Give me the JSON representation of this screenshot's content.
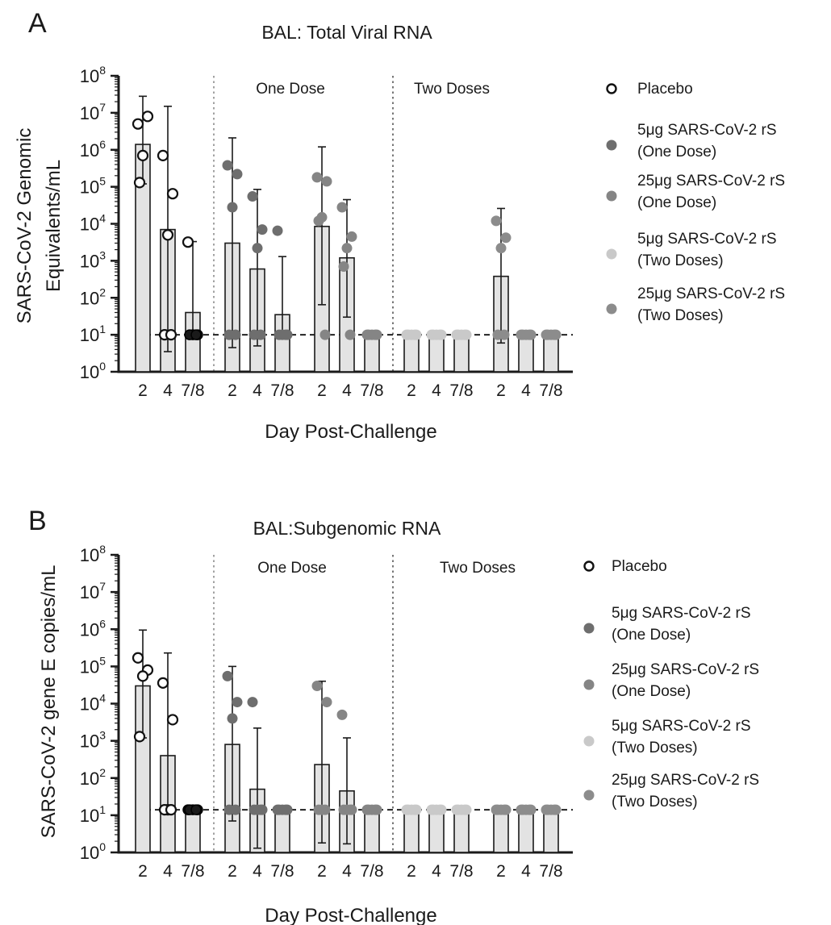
{
  "chart_data": [
    {
      "panel_letter": "A",
      "type": "bar",
      "title": "BAL: Total Viral RNA",
      "xlabel": "Day Post-Challenge",
      "ylabel_lines": [
        "SARS-CoV-2 Genomic",
        "Equivalents/mL"
      ],
      "y_scale": "log",
      "ylim": [
        1,
        100000000
      ],
      "y_ticks": [
        {
          "base": "10",
          "exp": "0"
        },
        {
          "base": "10",
          "exp": "1"
        },
        {
          "base": "10",
          "exp": "2"
        },
        {
          "base": "10",
          "exp": "3"
        },
        {
          "base": "10",
          "exp": "4"
        },
        {
          "base": "10",
          "exp": "5"
        },
        {
          "base": "10",
          "exp": "6"
        },
        {
          "base": "10",
          "exp": "7"
        },
        {
          "base": "10",
          "exp": "8"
        }
      ],
      "detection_limit": 10,
      "section_labels": [
        "One Dose",
        "Two Doses"
      ],
      "groups": [
        {
          "series": "Placebo",
          "days": [
            "2",
            "4",
            "7/8"
          ],
          "values": [
            1400000,
            7000,
            40
          ],
          "err_low": [
            120000,
            3.5,
            10
          ],
          "err_high": [
            28000000,
            15000000,
            3300
          ],
          "points": [
            [
              5000000,
              8000000,
              700000,
              130000
            ],
            [
              700000,
              65000,
              5000,
              10,
              10
            ],
            [
              3200,
              10,
              10,
              10,
              10
            ]
          ]
        },
        {
          "series": "5μg SARS-CoV-2 rS (One Dose)",
          "days": [
            "2",
            "4",
            "7/8"
          ],
          "values": [
            3000,
            600,
            35
          ],
          "err_low": [
            4.5,
            5,
            10
          ],
          "err_high": [
            2100000,
            85000,
            1300
          ],
          "points": [
            [
              380000,
              220000,
              28000,
              10,
              10
            ],
            [
              55000,
              7000,
              2200,
              10,
              10
            ],
            [
              6500,
              10,
              10,
              10,
              10
            ]
          ]
        },
        {
          "series": "25μg SARS-CoV-2 rS (One Dose)",
          "days": [
            "2",
            "4",
            "7/8"
          ],
          "values": [
            8500,
            1200,
            10
          ],
          "err_low": [
            65,
            30,
            10
          ],
          "err_high": [
            1200000,
            45000,
            10
          ],
          "points": [
            [
              180000,
              140000,
              15000,
              12000,
              10
            ],
            [
              28000,
              4500,
              2200,
              700,
              10
            ],
            [
              10,
              10,
              10,
              10,
              10
            ]
          ]
        },
        {
          "series": "5μg SARS-CoV-2 rS (Two Doses)",
          "days": [
            "2",
            "4",
            "7/8"
          ],
          "values": [
            10,
            10,
            10
          ],
          "err_low": [
            10,
            10,
            10
          ],
          "err_high": [
            10,
            10,
            10
          ],
          "points": [
            [
              10,
              10,
              10,
              10,
              10
            ],
            [
              10,
              10,
              10,
              10,
              10
            ],
            [
              10,
              10,
              10,
              10,
              10
            ]
          ]
        },
        {
          "series": "25μg SARS-CoV-2 rS (Two Doses)",
          "days": [
            "2",
            "4",
            "7/8"
          ],
          "values": [
            380,
            10,
            10
          ],
          "err_low": [
            6,
            10,
            10
          ],
          "err_high": [
            26000,
            10,
            10
          ],
          "points": [
            [
              12000,
              4200,
              2200,
              10,
              10
            ],
            [
              10,
              10,
              10,
              10,
              10
            ],
            [
              10,
              10,
              10,
              10,
              10
            ]
          ]
        }
      ],
      "legend": [
        {
          "label_lines": [
            "Placebo"
          ],
          "marker": "open",
          "color": "#1a1a1a"
        },
        {
          "label_lines": [
            "5μg SARS-CoV-2 rS",
            "(One Dose)"
          ],
          "marker": "filled",
          "color": "#6e6e6e"
        },
        {
          "label_lines": [
            "25μg SARS-CoV-2 rS",
            "(One Dose)"
          ],
          "marker": "filled",
          "color": "#858585"
        },
        {
          "label_lines": [
            "5μg SARS-CoV-2 rS",
            "(Two Doses)"
          ],
          "marker": "filled",
          "color": "#c9c9c9"
        },
        {
          "label_lines": [
            "25μg SARS-CoV-2 rS",
            "(Two Doses)"
          ],
          "marker": "filled",
          "color": "#8c8c8c"
        }
      ],
      "legend_placement": "right"
    },
    {
      "panel_letter": "B",
      "type": "bar",
      "title": "BAL:Subgenomic RNA",
      "xlabel": "Day Post-Challenge",
      "ylabel_lines": [
        "SARS-CoV-2 gene E copies/mL"
      ],
      "y_scale": "log",
      "ylim": [
        1,
        100000000
      ],
      "y_ticks": [
        {
          "base": "10",
          "exp": "0"
        },
        {
          "base": "10",
          "exp": "1"
        },
        {
          "base": "10",
          "exp": "2"
        },
        {
          "base": "10",
          "exp": "3"
        },
        {
          "base": "10",
          "exp": "4"
        },
        {
          "base": "10",
          "exp": "5"
        },
        {
          "base": "10",
          "exp": "6"
        },
        {
          "base": "10",
          "exp": "7"
        },
        {
          "base": "10",
          "exp": "8"
        }
      ],
      "detection_limit": 14,
      "section_labels": [
        "One Dose",
        "Two Doses"
      ],
      "groups": [
        {
          "series": "Placebo",
          "days": [
            "2",
            "4",
            "7/8"
          ],
          "values": [
            30000,
            400,
            14
          ],
          "err_low": [
            1200,
            14,
            14
          ],
          "err_high": [
            950000,
            230000,
            14
          ],
          "points": [
            [
              170000,
              80000,
              55000,
              1300
            ],
            [
              36000,
              3700,
              14,
              14,
              14
            ],
            [
              14,
              14,
              14,
              14,
              14
            ]
          ]
        },
        {
          "series": "5μg SARS-CoV-2 rS (One Dose)",
          "days": [
            "2",
            "4",
            "7/8"
          ],
          "values": [
            800,
            50,
            14
          ],
          "err_low": [
            7,
            1.3,
            14
          ],
          "err_high": [
            100000,
            2200,
            14
          ],
          "points": [
            [
              55000,
              11000,
              4000,
              14,
              14
            ],
            [
              11000,
              14,
              14,
              14,
              14
            ],
            [
              14,
              14,
              14,
              14,
              14
            ]
          ]
        },
        {
          "series": "25μg SARS-CoV-2 rS (One Dose)",
          "days": [
            "2",
            "4",
            "7/8"
          ],
          "values": [
            230,
            45,
            14
          ],
          "err_low": [
            1.8,
            1.7,
            14
          ],
          "err_high": [
            40000,
            1200,
            14
          ],
          "points": [
            [
              30000,
              11000,
              14,
              14,
              14
            ],
            [
              5000,
              14,
              14,
              14,
              14
            ],
            [
              14,
              14,
              14,
              14,
              14
            ]
          ]
        },
        {
          "series": "5μg SARS-CoV-2 rS (Two Doses)",
          "days": [
            "2",
            "4",
            "7/8"
          ],
          "values": [
            14,
            14,
            14
          ],
          "err_low": [
            14,
            14,
            14
          ],
          "err_high": [
            14,
            14,
            14
          ],
          "points": [
            [
              14,
              14,
              14,
              14,
              14
            ],
            [
              14,
              14,
              14,
              14,
              14
            ],
            [
              14,
              14,
              14,
              14,
              14
            ]
          ]
        },
        {
          "series": "25μg SARS-CoV-2 rS (Two Doses)",
          "days": [
            "2",
            "4",
            "7/8"
          ],
          "values": [
            14,
            14,
            14
          ],
          "err_low": [
            14,
            14,
            14
          ],
          "err_high": [
            14,
            14,
            14
          ],
          "points": [
            [
              14,
              14,
              14,
              14,
              14
            ],
            [
              14,
              14,
              14,
              14,
              14
            ],
            [
              14,
              14,
              14,
              14,
              14
            ]
          ]
        }
      ],
      "legend": [
        {
          "label_lines": [
            "Placebo"
          ],
          "marker": "open",
          "color": "#1a1a1a"
        },
        {
          "label_lines": [
            "5μg SARS-CoV-2 rS",
            "(One Dose)"
          ],
          "marker": "filled",
          "color": "#6e6e6e"
        },
        {
          "label_lines": [
            "25μg SARS-CoV-2 rS",
            "(One Dose)"
          ],
          "marker": "filled",
          "color": "#858585"
        },
        {
          "label_lines": [
            "5μg SARS-CoV-2 rS",
            "(Two Doses)"
          ],
          "marker": "filled",
          "color": "#c9c9c9"
        },
        {
          "label_lines": [
            "25μg SARS-CoV-2 rS",
            "(Two Doses)"
          ],
          "marker": "filled",
          "color": "#8c8c8c"
        }
      ],
      "legend_placement": "right"
    }
  ],
  "colors": {
    "bar_fill": "#e3e3e3",
    "axis": "#1a1a1a",
    "placebo_7_8_marker": "#1a1a1a"
  }
}
